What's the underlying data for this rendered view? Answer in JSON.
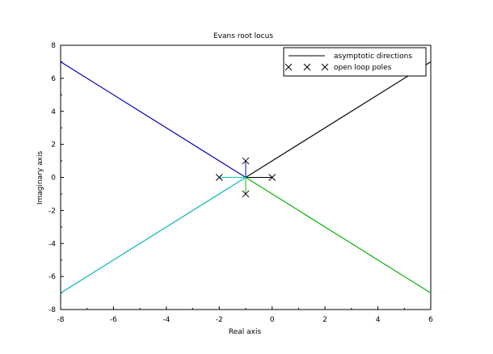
{
  "chart_data": {
    "type": "line",
    "title": "Evans root locus",
    "xlabel": "Real axis",
    "ylabel": "Imaginary axis",
    "xlim": [
      -8,
      6
    ],
    "ylim": [
      -8,
      8
    ],
    "xticks": [
      "-8",
      "-6",
      "-4",
      "-2",
      "0",
      "2",
      "4",
      "6"
    ],
    "yticks": [
      "8",
      "6",
      "4",
      "2",
      "0",
      "-2",
      "-4",
      "-6",
      "-8"
    ],
    "grid": false,
    "legend_position": "top-right",
    "legend": [
      {
        "label": "asymptotic directions",
        "style": "line",
        "color": "#000000"
      },
      {
        "label": "open loop poles",
        "style": "x-markers",
        "color": "#000000"
      }
    ],
    "series": [
      {
        "role": "asymptote",
        "color": "#000000",
        "x": [
          -1,
          6
        ],
        "y": [
          0,
          7
        ]
      },
      {
        "role": "asymptote",
        "color": "#000000",
        "x": [
          -1,
          6
        ],
        "y": [
          0,
          -7
        ]
      },
      {
        "role": "asymptote",
        "color": "#000000",
        "x": [
          -1,
          -8
        ],
        "y": [
          0,
          7
        ]
      },
      {
        "role": "asymptote",
        "color": "#000000",
        "x": [
          -1,
          -8
        ],
        "y": [
          0,
          -7
        ]
      },
      {
        "role": "branch",
        "color": "#000000",
        "x": [
          0,
          -1,
          -1,
          -0.75,
          6
        ],
        "y": [
          0,
          0,
          0,
          0.25,
          7
        ]
      },
      {
        "role": "branch",
        "color": "#0000cc",
        "x": [
          -1,
          -1,
          -1.25,
          -8
        ],
        "y": [
          1,
          0,
          0.25,
          7
        ]
      },
      {
        "role": "branch",
        "color": "#00cccc",
        "x": [
          -2,
          -1,
          -1,
          -1.25,
          -8
        ],
        "y": [
          0,
          0,
          0,
          -0.25,
          -7
        ]
      },
      {
        "role": "branch",
        "color": "#00cc00",
        "x": [
          -1,
          -1,
          -0.75,
          6
        ],
        "y": [
          -1,
          0,
          -0.25,
          -7
        ]
      }
    ],
    "poles": [
      {
        "x": 0,
        "y": 0
      },
      {
        "x": -2,
        "y": 0
      },
      {
        "x": -1,
        "y": 1
      },
      {
        "x": -1,
        "y": -1
      }
    ]
  }
}
